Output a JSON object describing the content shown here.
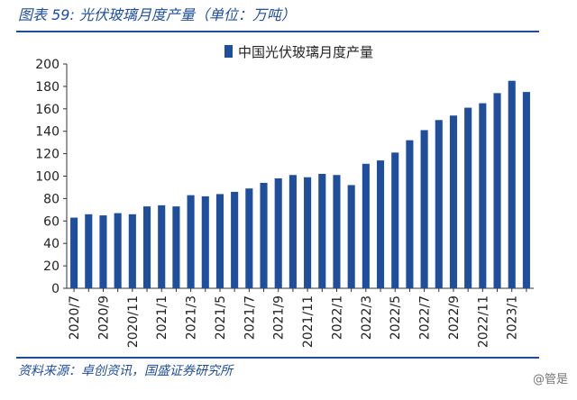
{
  "figure": {
    "title": "图表 59:  光伏玻璃月度产量（单位：万吨）",
    "source": "资料来源：卓创资讯，国盛证券研究所",
    "watermark": "@管是"
  },
  "colors": {
    "bar": "#1f4e9c",
    "accent": "#1f4e9c"
  },
  "chart_data": {
    "type": "bar",
    "title": "",
    "xlabel": "",
    "ylabel": "",
    "ylim": [
      0,
      200
    ],
    "yticks": [
      0,
      20,
      40,
      60,
      80,
      100,
      120,
      140,
      160,
      180,
      200
    ],
    "grid": false,
    "legend_position": "top-right",
    "categories": [
      "2020/7",
      "2020/8",
      "2020/9",
      "2020/10",
      "2020/11",
      "2020/12",
      "2021/1",
      "2021/2",
      "2021/3",
      "2021/4",
      "2021/5",
      "2021/6",
      "2021/7",
      "2021/8",
      "2021/9",
      "2021/10",
      "2021/11",
      "2021/12",
      "2022/1",
      "2022/2",
      "2022/3",
      "2022/4",
      "2022/5",
      "2022/6",
      "2022/7",
      "2022/8",
      "2022/9",
      "2022/10",
      "2022/11",
      "2022/12",
      "2023/1",
      "2023/2"
    ],
    "xtick_labels": [
      "2020/7",
      "2020/9",
      "2020/11",
      "2021/1",
      "2021/3",
      "2021/5",
      "2021/7",
      "2021/9",
      "2021/11",
      "2022/1",
      "2022/3",
      "2022/5",
      "2022/7",
      "2022/9",
      "2022/11",
      "2023/1"
    ],
    "series": [
      {
        "name": "中国光伏玻璃月度产量",
        "values": [
          63,
          66,
          65,
          67,
          66,
          73,
          74,
          73,
          83,
          82,
          84,
          86,
          89,
          94,
          98,
          101,
          99,
          102,
          101,
          92,
          111,
          114,
          121,
          132,
          141,
          150,
          154,
          161,
          165,
          174,
          185,
          175
        ]
      }
    ]
  }
}
